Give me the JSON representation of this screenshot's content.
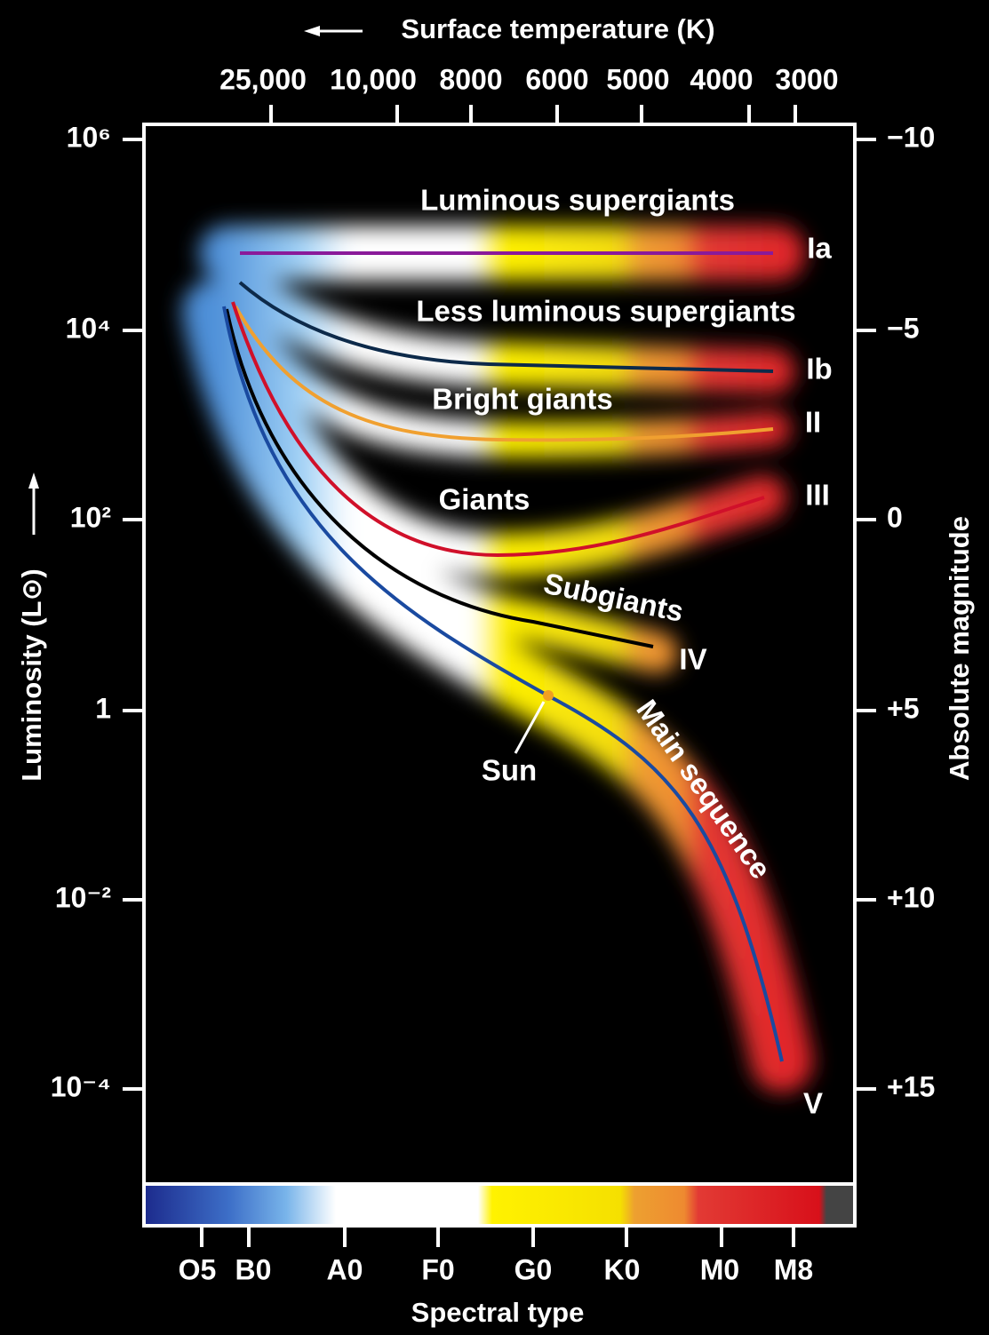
{
  "top_axis": {
    "title": "Surface temperature (K)",
    "ticks": [
      "25,000",
      "10,000",
      "8000",
      "6000",
      "5000",
      "4000",
      "3000"
    ]
  },
  "left_axis": {
    "title": "Luminosity (L⊙)",
    "ticks": [
      "10⁶",
      "10⁴",
      "10²",
      "1",
      "10⁻²",
      "10⁻⁴"
    ]
  },
  "right_axis": {
    "title": "Absolute magnitude",
    "ticks": [
      "−10",
      "−5",
      "0",
      "+5",
      "+10",
      "+15"
    ]
  },
  "bottom_axis": {
    "title": "Spectral type",
    "ticks": [
      "O5",
      "B0",
      "A0",
      "F0",
      "G0",
      "K0",
      "M0",
      "M8"
    ]
  },
  "regions": [
    {
      "label": "Luminous supergiants",
      "class": "Ia"
    },
    {
      "label": "Less luminous supergiants",
      "class": "Ib"
    },
    {
      "label": "Bright giants",
      "class": "II"
    },
    {
      "label": "Giants",
      "class": "III"
    },
    {
      "label": "Subgiants",
      "class": "IV"
    },
    {
      "label": "Main sequence",
      "class": "V"
    }
  ],
  "sun": "Sun"
}
